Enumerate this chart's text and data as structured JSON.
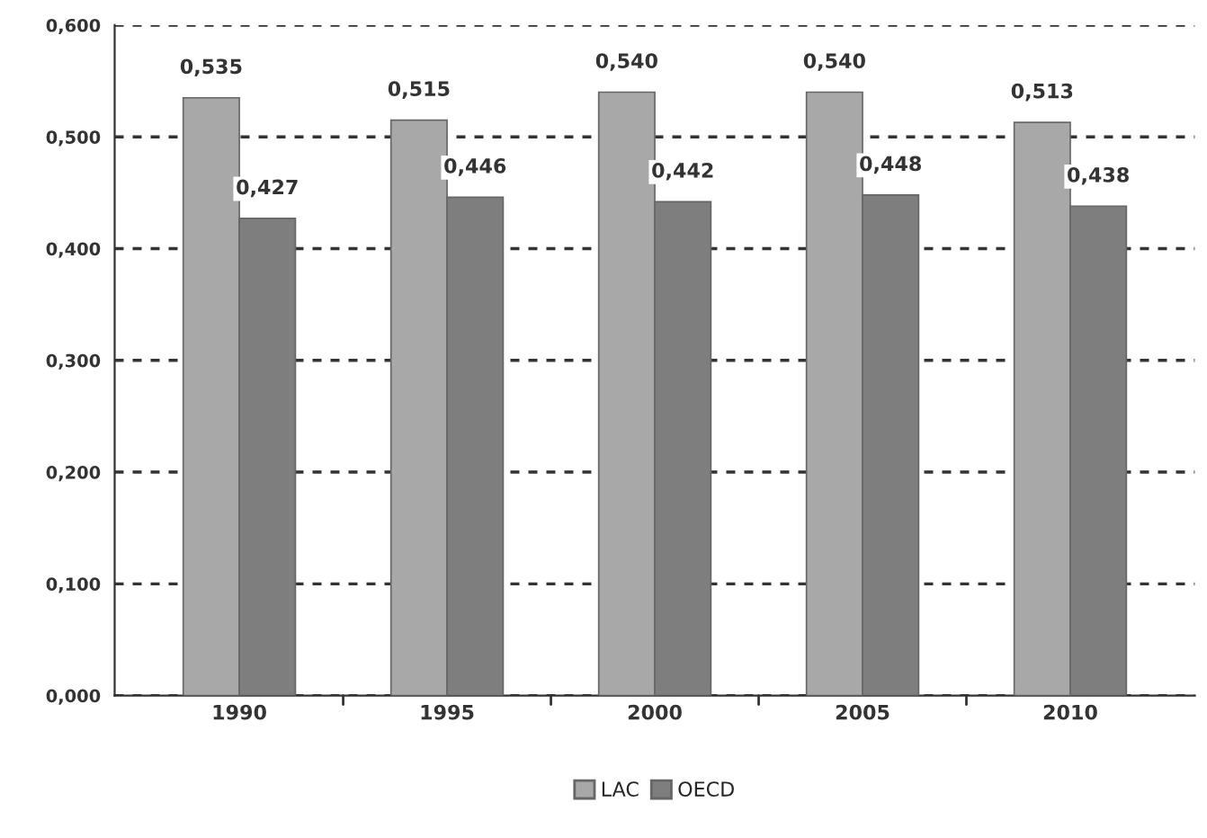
{
  "chart_data": {
    "type": "bar",
    "categories": [
      "1990",
      "1995",
      "2000",
      "2005",
      "2010"
    ],
    "series": [
      {
        "name": "LAC",
        "color": "#a8a8a8",
        "values": [
          0.535,
          0.515,
          0.54,
          0.54,
          0.513
        ],
        "value_labels": [
          "0,535",
          "0,515",
          "0,540",
          "0,540",
          "0,513"
        ]
      },
      {
        "name": "OECD",
        "color": "#7e7e7e",
        "values": [
          0.427,
          0.446,
          0.442,
          0.448,
          0.438
        ],
        "value_labels": [
          "0,427",
          "0,446",
          "0,442",
          "0,448",
          "0,438"
        ]
      }
    ],
    "ylim": [
      0,
      0.6
    ],
    "yticks": [
      {
        "value": 0,
        "label": "0,000"
      },
      {
        "value": 0.1,
        "label": "0,100"
      },
      {
        "value": 0.2,
        "label": "0,200"
      },
      {
        "value": 0.3,
        "label": "0,300"
      },
      {
        "value": 0.4,
        "label": "0,400"
      },
      {
        "value": 0.5,
        "label": "0,500"
      },
      {
        "value": 0.6,
        "label": "0,600"
      }
    ],
    "grid": "y",
    "legend": "bottom"
  }
}
